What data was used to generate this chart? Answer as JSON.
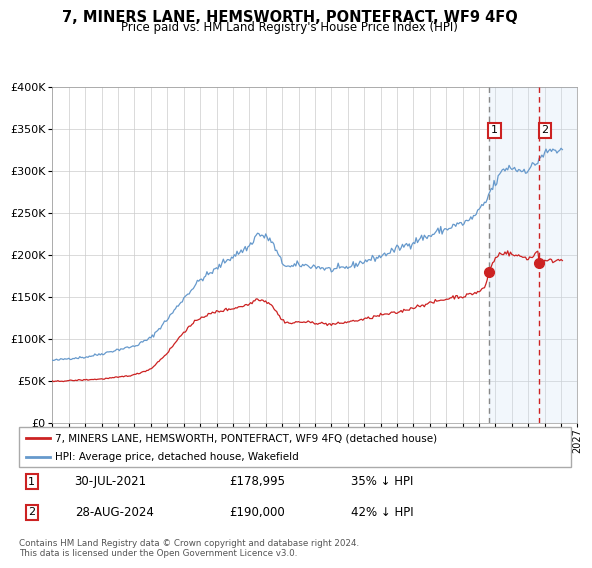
{
  "title": "7, MINERS LANE, HEMSWORTH, PONTEFRACT, WF9 4FQ",
  "subtitle": "Price paid vs. HM Land Registry's House Price Index (HPI)",
  "legend_line1": "7, MINERS LANE, HEMSWORTH, PONTEFRACT, WF9 4FQ (detached house)",
  "legend_line2": "HPI: Average price, detached house, Wakefield",
  "annotation1_date": "30-JUL-2021",
  "annotation1_price": "£178,995",
  "annotation1_hpi": "35% ↓ HPI",
  "annotation2_date": "28-AUG-2024",
  "annotation2_price": "£190,000",
  "annotation2_hpi": "42% ↓ HPI",
  "sale1_year": 2021.58,
  "sale1_price": 178995,
  "sale2_year": 2024.66,
  "sale2_price": 190000,
  "vline1_year": 2021.58,
  "vline2_year": 2024.66,
  "xmin": 1995,
  "xmax": 2027,
  "ymin": 0,
  "ymax": 400000,
  "background_color": "#ffffff",
  "plot_bg_color": "#ffffff",
  "grid_color": "#cccccc",
  "hpi_line_color": "#6699cc",
  "price_line_color": "#cc2222",
  "vline1_color": "#888888",
  "vline2_color": "#cc2222",
  "shaded_region_color": "#cce0f5",
  "footer_text": "Contains HM Land Registry data © Crown copyright and database right 2024.\nThis data is licensed under the Open Government Licence v3.0."
}
